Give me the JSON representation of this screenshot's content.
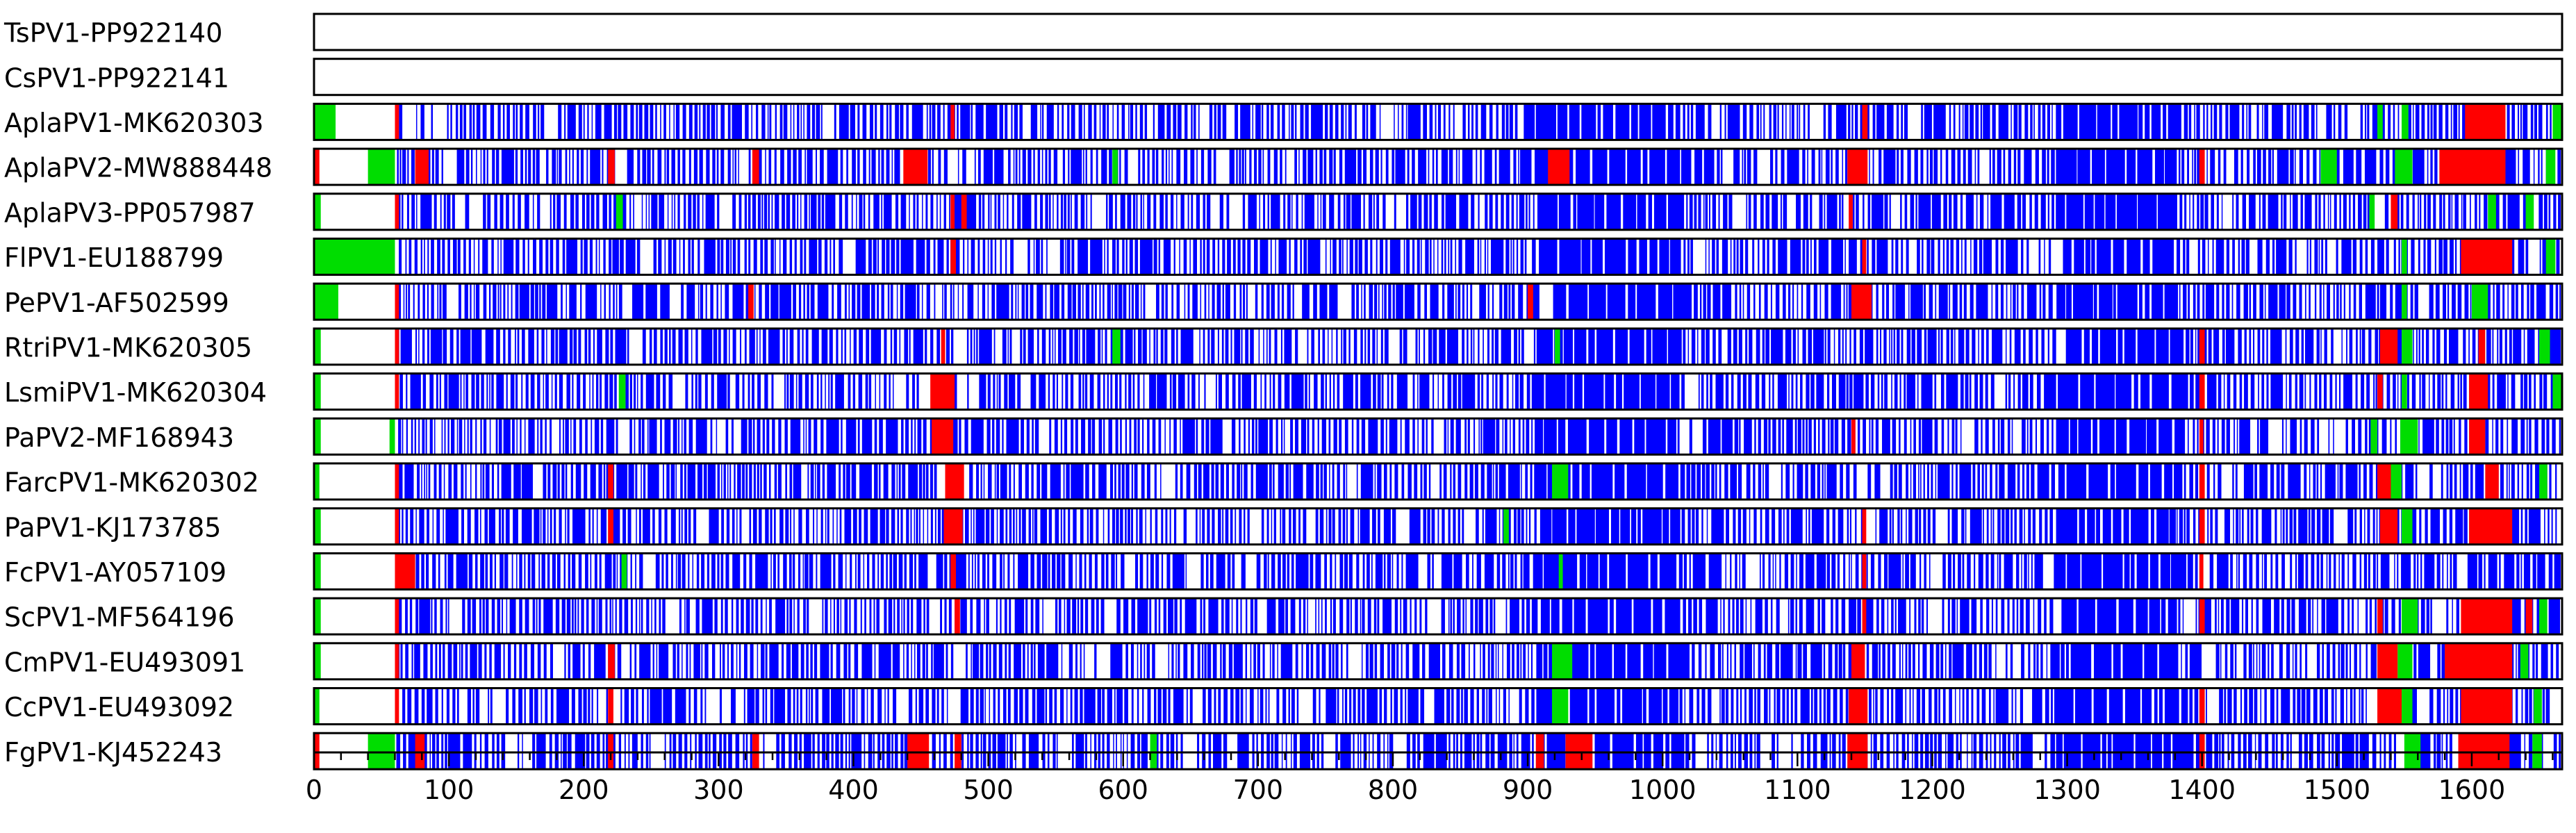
{
  "chart_data": {
    "type": "heatmap",
    "description_free": true,
    "x_range": [
      0,
      1667
    ],
    "x_ticks": [
      0,
      100,
      200,
      300,
      400,
      500,
      600,
      700,
      800,
      900,
      1000,
      1100,
      1200,
      1300,
      1400,
      1500,
      1600
    ],
    "colors": {
      "conserved": "#0000ff",
      "gap": "#ffffff",
      "red_block": "#ff0000",
      "green_block": "#00dd00"
    },
    "sequences": [
      {
        "label": "TsPV1-PP922140",
        "seed": 1,
        "empty": true,
        "red": [],
        "green": []
      },
      {
        "label": "CsPV1-PP922141",
        "seed": 2,
        "empty": true,
        "red": [],
        "green": []
      },
      {
        "label": "AplaPV1-MK620303",
        "seed": 3,
        "empty": false,
        "red": [
          [
            60,
            63
          ],
          [
            472,
            475
          ],
          [
            1148,
            1152
          ],
          [
            1595,
            1625
          ]
        ],
        "green": [
          [
            0,
            16
          ],
          [
            1530,
            1534
          ],
          [
            1548,
            1553
          ],
          [
            1660,
            1667
          ]
        ]
      },
      {
        "label": "AplaPV2-MW888448",
        "seed": 4,
        "empty": false,
        "red": [
          [
            0,
            4
          ],
          [
            75,
            85
          ],
          [
            218,
            223
          ],
          [
            325,
            330
          ],
          [
            437,
            455
          ],
          [
            915,
            931
          ],
          [
            1137,
            1152
          ],
          [
            1398,
            1402
          ],
          [
            1576,
            1625
          ]
        ],
        "green": [
          [
            40,
            60
          ],
          [
            592,
            596
          ],
          [
            1488,
            1500
          ],
          [
            1543,
            1556
          ],
          [
            1655,
            1662
          ]
        ]
      },
      {
        "label": "AplaPV3-PP057987",
        "seed": 5,
        "empty": false,
        "red": [
          [
            60,
            63
          ],
          [
            472,
            475
          ],
          [
            480,
            484
          ],
          [
            1138,
            1141
          ],
          [
            1540,
            1545
          ]
        ],
        "green": [
          [
            0,
            5
          ],
          [
            224,
            229
          ],
          [
            1524,
            1528
          ],
          [
            1612,
            1618
          ],
          [
            1640,
            1646
          ]
        ]
      },
      {
        "label": "FlPV1-EU188799",
        "seed": 6,
        "empty": false,
        "red": [
          [
            472,
            476
          ],
          [
            1148,
            1151
          ],
          [
            1592,
            1630
          ]
        ],
        "green": [
          [
            0,
            60
          ],
          [
            1548,
            1552
          ],
          [
            1655,
            1662
          ]
        ]
      },
      {
        "label": "PePV1-AF502599",
        "seed": 7,
        "empty": false,
        "red": [
          [
            60,
            63
          ],
          [
            322,
            326
          ],
          [
            900,
            904
          ],
          [
            1140,
            1155
          ]
        ],
        "green": [
          [
            0,
            18
          ],
          [
            1548,
            1552
          ],
          [
            1600,
            1612
          ]
        ]
      },
      {
        "label": "RtriPV1-MK620305",
        "seed": 8,
        "empty": false,
        "red": [
          [
            60,
            63
          ],
          [
            465,
            468
          ],
          [
            1398,
            1402
          ],
          [
            1532,
            1545
          ],
          [
            1605,
            1610
          ]
        ],
        "green": [
          [
            0,
            5
          ],
          [
            592,
            598
          ],
          [
            920,
            924
          ],
          [
            1548,
            1556
          ],
          [
            1650,
            1658
          ]
        ]
      },
      {
        "label": "LsmiPV1-MK620304",
        "seed": 9,
        "empty": false,
        "red": [
          [
            60,
            63
          ],
          [
            457,
            475
          ],
          [
            1398,
            1402
          ],
          [
            1530,
            1534
          ],
          [
            1598,
            1612
          ]
        ],
        "green": [
          [
            0,
            5
          ],
          [
            226,
            231
          ],
          [
            1548,
            1552
          ],
          [
            1660,
            1667
          ]
        ]
      },
      {
        "label": "PaPV2-MF168943",
        "seed": 10,
        "empty": false,
        "red": [
          [
            458,
            474
          ],
          [
            1140,
            1143
          ],
          [
            1398,
            1401
          ],
          [
            1598,
            1610
          ]
        ],
        "green": [
          [
            0,
            5
          ],
          [
            56,
            60
          ],
          [
            1525,
            1530
          ],
          [
            1547,
            1560
          ]
        ]
      },
      {
        "label": "FarcPV1-MK620302",
        "seed": 11,
        "empty": false,
        "red": [
          [
            60,
            63
          ],
          [
            218,
            222
          ],
          [
            468,
            482
          ],
          [
            1398,
            1402
          ],
          [
            1530,
            1540
          ],
          [
            1610,
            1620
          ]
        ],
        "green": [
          [
            0,
            4
          ],
          [
            918,
            930
          ],
          [
            1540,
            1548
          ],
          [
            1650,
            1656
          ]
        ]
      },
      {
        "label": "PaPV1-KJ173785",
        "seed": 12,
        "empty": false,
        "red": [
          [
            60,
            63
          ],
          [
            218,
            222
          ],
          [
            467,
            481
          ],
          [
            1148,
            1151
          ],
          [
            1398,
            1402
          ],
          [
            1532,
            1545
          ],
          [
            1598,
            1630
          ]
        ],
        "green": [
          [
            0,
            5
          ],
          [
            882,
            886
          ],
          [
            1548,
            1556
          ]
        ]
      },
      {
        "label": "FcPV1-AY057109",
        "seed": 13,
        "empty": false,
        "red": [
          [
            60,
            75
          ],
          [
            472,
            476
          ],
          [
            1148,
            1151
          ],
          [
            1398,
            1401
          ]
        ],
        "green": [
          [
            0,
            5
          ],
          [
            228,
            232
          ],
          [
            923,
            926
          ]
        ]
      },
      {
        "label": "ScPV1-MF564196",
        "seed": 14,
        "empty": false,
        "red": [
          [
            60,
            63
          ],
          [
            475,
            479
          ],
          [
            1148,
            1151
          ],
          [
            1398,
            1402
          ],
          [
            1530,
            1534
          ],
          [
            1592,
            1630
          ],
          [
            1640,
            1645
          ]
        ],
        "green": [
          [
            0,
            5
          ],
          [
            1548,
            1560
          ],
          [
            1650,
            1656
          ]
        ]
      },
      {
        "label": "CmPV1-EU493091",
        "seed": 15,
        "empty": false,
        "red": [
          [
            60,
            63
          ],
          [
            218,
            223
          ],
          [
            1140,
            1150
          ],
          [
            1530,
            1545
          ],
          [
            1580,
            1630
          ]
        ],
        "green": [
          [
            0,
            5
          ],
          [
            918,
            933
          ],
          [
            1545,
            1556
          ],
          [
            1636,
            1642
          ]
        ]
      },
      {
        "label": "CcPV1-EU493092",
        "seed": 16,
        "empty": false,
        "red": [
          [
            60,
            63
          ],
          [
            218,
            222
          ],
          [
            1138,
            1152
          ],
          [
            1398,
            1402
          ],
          [
            1530,
            1548
          ],
          [
            1592,
            1630
          ]
        ],
        "green": [
          [
            0,
            4
          ],
          [
            918,
            930
          ],
          [
            1548,
            1556
          ],
          [
            1646,
            1652
          ]
        ]
      },
      {
        "label": "FgPV1-KJ452243",
        "seed": 17,
        "empty": false,
        "red": [
          [
            0,
            4
          ],
          [
            75,
            82
          ],
          [
            218,
            222
          ],
          [
            325,
            330
          ],
          [
            440,
            456
          ],
          [
            475,
            480
          ],
          [
            906,
            912
          ],
          [
            928,
            948
          ],
          [
            1137,
            1152
          ],
          [
            1398,
            1402
          ],
          [
            1590,
            1628
          ]
        ],
        "green": [
          [
            40,
            60
          ],
          [
            620,
            625
          ],
          [
            1550,
            1562
          ],
          [
            1645,
            1652
          ]
        ]
      }
    ]
  }
}
